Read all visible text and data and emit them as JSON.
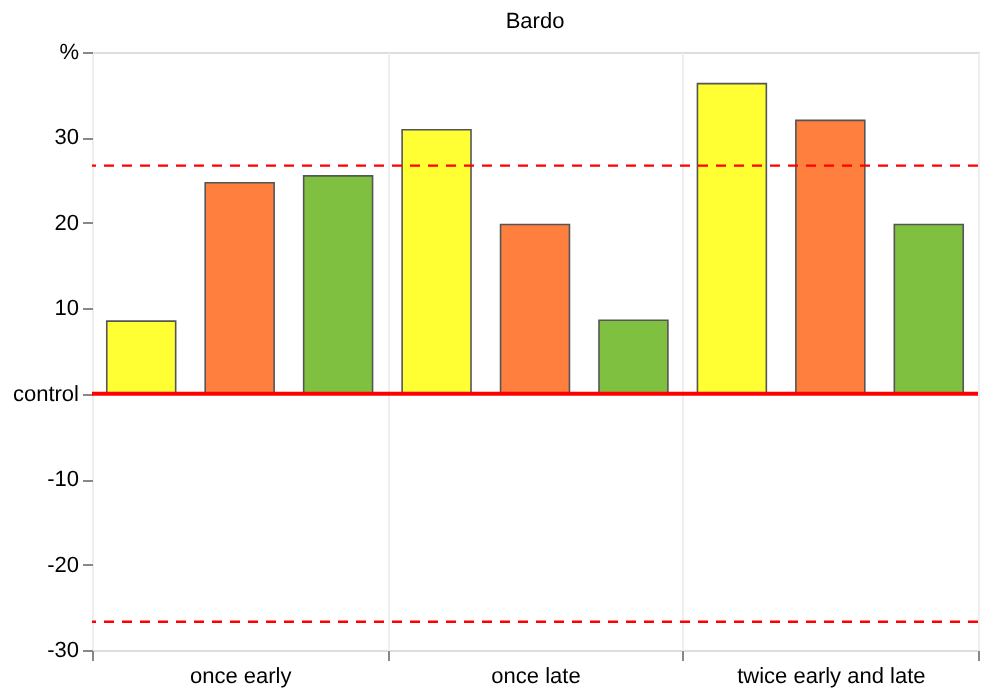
{
  "chart_data": {
    "type": "bar",
    "title": "Bardo",
    "categories": [
      "once early",
      "once late",
      "twice early and late"
    ],
    "series": [
      {
        "color": "#ffff33",
        "values": [
          8.5,
          30.9,
          36.3
        ]
      },
      {
        "color": "#ff7f3f",
        "values": [
          24.7,
          19.8,
          32
        ]
      },
      {
        "color": "#80c040",
        "values": [
          25.5,
          8.6,
          19.8
        ]
      }
    ],
    "ylim": [
      -30,
      40
    ],
    "yticks": [
      -30,
      -20,
      -10,
      {
        "value": 0,
        "label": "control"
      },
      10,
      20,
      30,
      {
        "value": 40,
        "label": "%"
      }
    ],
    "ref_lines": [
      {
        "axis": "y",
        "value": 0,
        "label": null,
        "color": "#ff0000",
        "line_style": "solid"
      },
      {
        "axis": "y",
        "value": 26.7,
        "label": null,
        "color": "#ff0000",
        "line_style": "dashed"
      },
      {
        "axis": "y",
        "value": -26.7,
        "label": null,
        "color": "#ff0000",
        "line_style": "dashed"
      }
    ],
    "grid": "x",
    "legend": false
  }
}
